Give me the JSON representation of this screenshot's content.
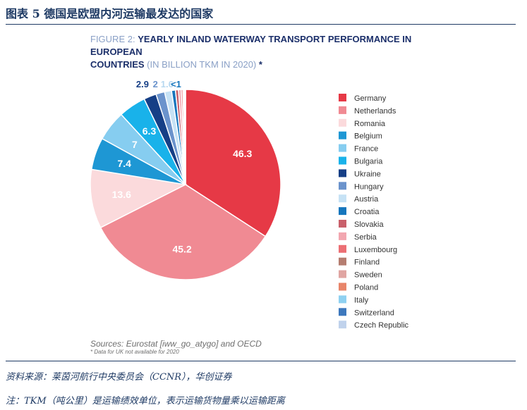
{
  "header": {
    "title": "图表 5   德国是欧盟内河运输最发达的国家"
  },
  "figure": {
    "prefix": "FIGURE 2: ",
    "title_bold_1": "YEARLY INLAND WATERWAY TRANSPORT PERFORMANCE IN EUROPEAN",
    "title_bold_2": "COUNTRIES",
    "title_sub": " (IN BILLION TKM IN 2020) ",
    "title_star": "*"
  },
  "chart_data": {
    "type": "pie",
    "title": "YEARLY INLAND WATERWAY TRANSPORT PERFORMANCE IN EUROPEAN COUNTRIES",
    "unit": "IN BILLION TKM IN 2020",
    "legend_position": "right",
    "slices": [
      {
        "name": "Germany",
        "value": 46.3,
        "label": "46.3",
        "color": "#e63946"
      },
      {
        "name": "Netherlands",
        "value": 45.2,
        "label": "45.2",
        "color": "#f08a93"
      },
      {
        "name": "Romania",
        "value": 13.6,
        "label": "13.6",
        "color": "#fbdadc"
      },
      {
        "name": "Belgium",
        "value": 7.4,
        "label": "7.4",
        "color": "#1e97d4"
      },
      {
        "name": "France",
        "value": 7,
        "label": "7",
        "color": "#86cdf0"
      },
      {
        "name": "Bulgaria",
        "value": 6.3,
        "label": "6.3",
        "color": "#19b2ea"
      },
      {
        "name": "Ukraine",
        "value": 2.9,
        "label": "2.9",
        "color": "#163f86"
      },
      {
        "name": "Hungary",
        "value": 2,
        "label": "2",
        "color": "#6b93cc"
      },
      {
        "name": "Austria",
        "value": 1.6,
        "label": "1.6",
        "color": "#c6e2f5"
      },
      {
        "name": "Croatia",
        "value": 0.9,
        "label": "<1",
        "color": "#1676bd"
      },
      {
        "name": "Slovakia",
        "value": 0.7,
        "label": "",
        "color": "#c9606b"
      },
      {
        "name": "Serbia",
        "value": 0.6,
        "label": "",
        "color": "#f2a7b0"
      },
      {
        "name": "Luxembourg",
        "value": 0.4,
        "label": "",
        "color": "#ec6f74"
      },
      {
        "name": "Finland",
        "value": 0.1,
        "label": "",
        "color": "#b57d70"
      },
      {
        "name": "Sweden",
        "value": 0.1,
        "label": "",
        "color": "#e0a5a2"
      },
      {
        "name": "Poland",
        "value": 0.1,
        "label": "",
        "color": "#e8856a"
      },
      {
        "name": "Italy",
        "value": 0.1,
        "label": "",
        "color": "#8fd1f1"
      },
      {
        "name": "Switzerland",
        "value": 0.1,
        "label": "",
        "color": "#3d78bd"
      },
      {
        "name": "Czech Republic",
        "value": 0.1,
        "label": "",
        "color": "#c0d2ec"
      }
    ]
  },
  "sources": {
    "text": "Sources: Eurostat [iww_go_atygo] and OECD",
    "note": "* Data for UK not available for 2020"
  },
  "footer": {
    "source": "资料来源：莱茵河航行中央委员会（CCNR），华创证券",
    "note": "注：TKM（吨公里）是运输绩效单位，表示运输货物量乘以运输距离"
  }
}
